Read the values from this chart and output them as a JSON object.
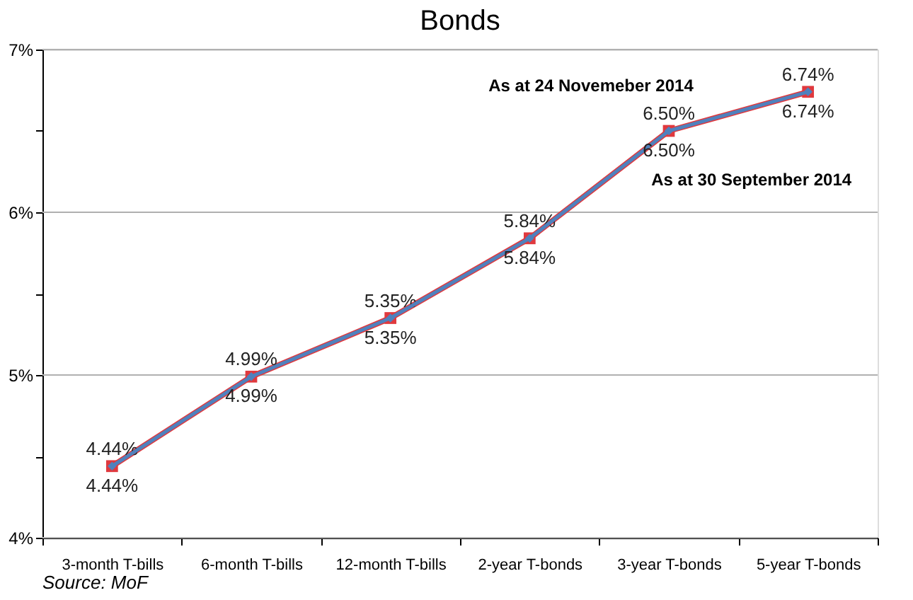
{
  "chart_data": {
    "type": "line",
    "title": "Bonds",
    "categories": [
      "3-month T-bills",
      "6-month T-bills",
      "12-month T-bills",
      "2-year T-bonds",
      "3-year T-bonds",
      "5-year T-bonds"
    ],
    "series": [
      {
        "name": "As at 24 Novemeber 2014",
        "color": "#e0393e",
        "marker": "square",
        "values": [
          4.44,
          4.99,
          5.35,
          5.84,
          6.5,
          6.74
        ],
        "value_labels": [
          "4.44%",
          "4.99%",
          "5.35%",
          "5.84%",
          "6.50%",
          "6.74%"
        ]
      },
      {
        "name": "As at 30 September 2014",
        "color": "#4f81bd",
        "marker": "diamond",
        "values": [
          4.44,
          4.99,
          5.35,
          5.84,
          6.5,
          6.74
        ],
        "value_labels": [
          "4.44%",
          "4.99%",
          "5.35%",
          "5.84%",
          "6.50%",
          "6.74%"
        ]
      }
    ],
    "ylim": [
      4,
      7
    ],
    "yticks": [
      {
        "value": 4,
        "label": "4%"
      },
      {
        "value": 4.5,
        "label": null
      },
      {
        "value": 5,
        "label": "5%"
      },
      {
        "value": 5.5,
        "label": null
      },
      {
        "value": 6,
        "label": "6%"
      },
      {
        "value": 6.5,
        "label": null
      },
      {
        "value": 7,
        "label": "7%"
      }
    ],
    "grid": "y",
    "line_style": "solid",
    "annotations": [
      "Source: MoF"
    ]
  }
}
